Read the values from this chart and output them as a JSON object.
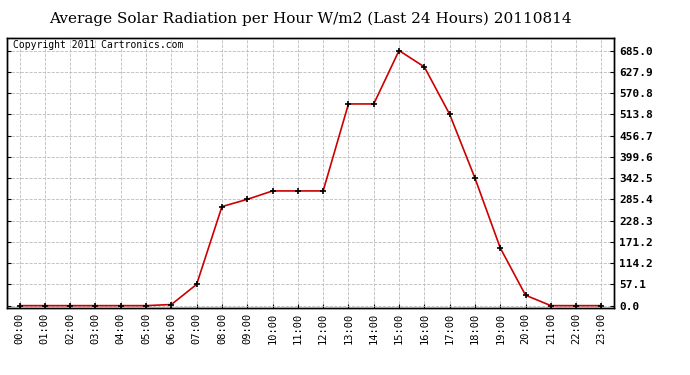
{
  "title": "Average Solar Radiation per Hour W/m2 (Last 24 Hours) 20110814",
  "copyright": "Copyright 2011 Cartronics.com",
  "hours": [
    "00:00",
    "01:00",
    "02:00",
    "03:00",
    "04:00",
    "05:00",
    "06:00",
    "07:00",
    "08:00",
    "09:00",
    "10:00",
    "11:00",
    "12:00",
    "13:00",
    "14:00",
    "15:00",
    "16:00",
    "17:00",
    "18:00",
    "19:00",
    "20:00",
    "21:00",
    "22:00",
    "23:00"
  ],
  "values": [
    0.0,
    0.0,
    0.0,
    0.0,
    0.0,
    0.0,
    3.0,
    57.1,
    266.0,
    285.4,
    308.0,
    308.0,
    308.0,
    541.6,
    541.6,
    685.0,
    641.0,
    513.8,
    342.5,
    155.0,
    28.0,
    0.0,
    0.0,
    0.0
  ],
  "y_ticks": [
    0.0,
    57.1,
    114.2,
    171.2,
    228.3,
    285.4,
    342.5,
    399.6,
    456.7,
    513.8,
    570.8,
    627.9,
    685.0
  ],
  "line_color": "#cc0000",
  "marker": "+",
  "marker_color": "#000000",
  "bg_color": "#ffffff",
  "plot_bg_color": "#ffffff",
  "grid_color": "#bbbbbb",
  "title_fontsize": 11,
  "copyright_fontsize": 7,
  "tick_fontsize": 7.5,
  "ytick_fontsize": 8,
  "ylim_min": -5,
  "ylim_max": 720
}
